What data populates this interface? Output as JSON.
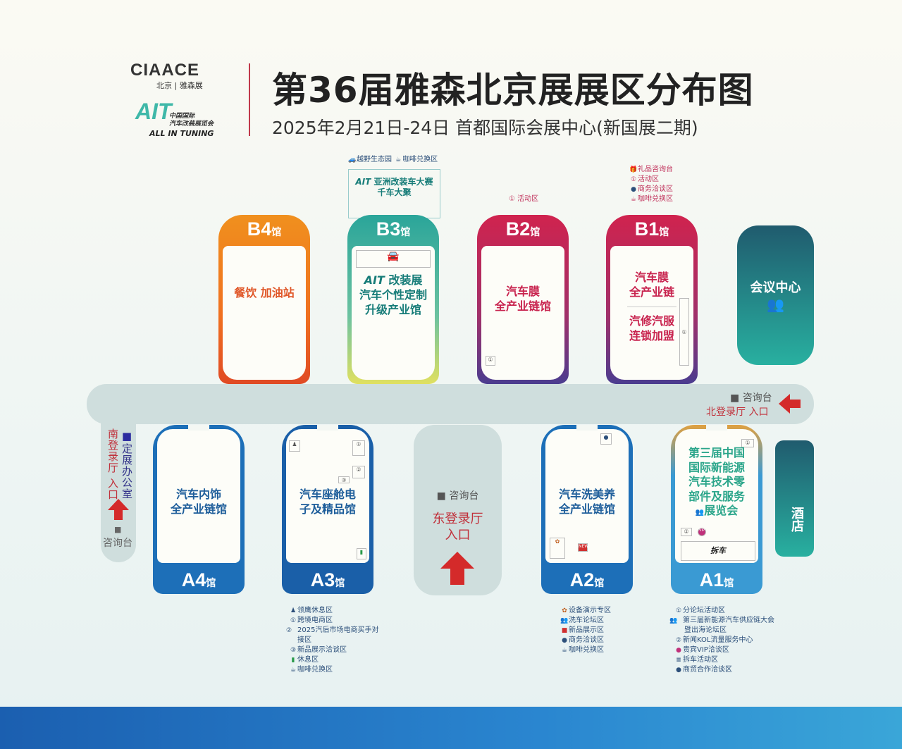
{
  "header": {
    "logo_ciaace": "CIAACE",
    "logo_ciaace_sub": "北京 | 雅森展",
    "logo_ait": "AIT",
    "logo_ait_sub1": "中国国际",
    "logo_ait_sub2": "汽车改装展览会",
    "logo_ait_en": "ALL IN TUNING",
    "title": "第36届雅森北京展展区分布图",
    "subtitle": "2025年2月21日-24日  首都国际会展中心(新国展二期)"
  },
  "halls": {
    "B4": {
      "code": "B4",
      "suffix": "馆",
      "text": "餐饮 加油站",
      "color": "#f0881e"
    },
    "B3": {
      "code": "B3",
      "suffix": "馆",
      "text_logo": "AIT",
      "text1": "改装展",
      "text2": "汽车个性定制",
      "text3": "升级产业馆",
      "color": "#2aa59a",
      "top_notes": [
        "越野生态园",
        "咖啡兑换区"
      ],
      "top_box_logo": "AIT",
      "top_box1": "亚洲改装车大赛",
      "top_box2": "千车大聚"
    },
    "B2": {
      "code": "B2",
      "suffix": "馆",
      "text1": "汽车膜",
      "text2": "全产业链馆",
      "color": "#c8234e",
      "top_note": "① 活动区"
    },
    "B1": {
      "code": "B1",
      "suffix": "馆",
      "text1": "汽车膜",
      "text2": "全产业链",
      "text3": "汽修汽服",
      "text4": "连锁加盟",
      "color": "#c8234e",
      "top_notes": [
        "礼品咨询台",
        "活动区",
        "商务洽谈区",
        "咖啡兑换区"
      ]
    },
    "A4": {
      "code": "A4",
      "suffix": "馆",
      "text1": "汽车内饰",
      "text2": "全产业链馆",
      "color": "#1d6fb8"
    },
    "A3": {
      "code": "A3",
      "suffix": "馆",
      "text1": "汽车座舱电",
      "text2": "子及精品馆",
      "color": "#1a5fa8"
    },
    "A2": {
      "code": "A2",
      "suffix": "馆",
      "text1": "汽车洗美养",
      "text2": "全产业链馆",
      "color": "#1d6fb8"
    },
    "A1": {
      "code": "A1",
      "suffix": "馆",
      "text1": "第三届中国",
      "text2": "国际新能源",
      "text3": "汽车技术零",
      "text4": "部件及服务",
      "text5": "展览会",
      "color": "#3a9ad3",
      "inner_logo": "拆车"
    }
  },
  "meeting_center": "会议中心",
  "hotel": "酒店",
  "north_entrance": {
    "info": "咨询台",
    "label": "北登录厅 入口"
  },
  "east_entrance": {
    "info": "咨询台",
    "label1": "东登录厅",
    "label2": "入口"
  },
  "south_entrance": {
    "label": "南登录厅 入口",
    "office": "定展办公室",
    "info": "咨询台"
  },
  "legends": {
    "A3": [
      {
        "icon": "eagle-icon",
        "text": "领鹰休息区"
      },
      {
        "icon": "①",
        "text": "跨境电商区"
      },
      {
        "icon": "②",
        "text": "2025汽后市场电商买手对接区"
      },
      {
        "icon": "③",
        "text": "新品展示洽谈区"
      },
      {
        "icon": "seat-icon",
        "text": "休息区"
      },
      {
        "icon": "coffee-icon",
        "text": "咖啡兑换区"
      }
    ],
    "A2": [
      {
        "icon": "gear-icon",
        "text": "设备演示专区"
      },
      {
        "icon": "people-icon",
        "text": "洗车论坛区"
      },
      {
        "icon": "new-icon",
        "text": "新品展示区"
      },
      {
        "icon": "handshake-icon",
        "text": "商务洽谈区"
      },
      {
        "icon": "coffee-icon",
        "text": "咖啡兑换区"
      }
    ],
    "A1": [
      {
        "icon": "①",
        "text": "分论坛活动区"
      },
      {
        "icon": "people-icon",
        "text": "第三届新能源汽车供应链大会暨出海论坛区"
      },
      {
        "icon": "②",
        "text": "新闻KOL流量服务中心"
      },
      {
        "icon": "vip-icon",
        "text": "贵宾VIP洽谈区"
      },
      {
        "icon": "logo-icon",
        "text": "拆车活动区"
      },
      {
        "icon": "handshake-icon",
        "text": "商贸合作洽谈区"
      }
    ]
  }
}
